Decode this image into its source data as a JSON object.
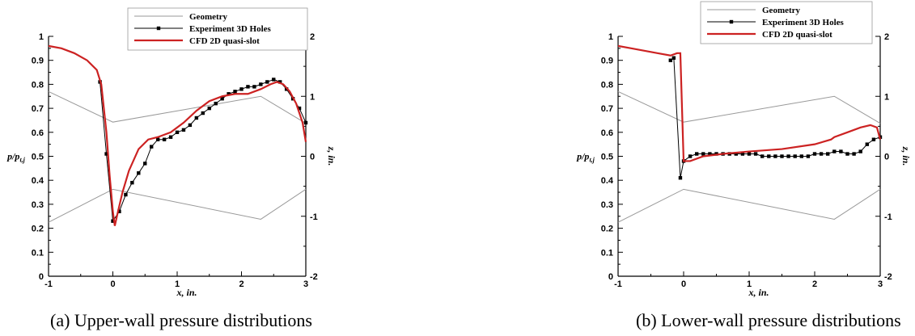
{
  "colors": {
    "geometry": "#999999",
    "experiment": "#000000",
    "cfd": "#cc2222"
  },
  "captions": [
    "(a) Upper-wall pressure distributions",
    "(b) Lower-wall pressure distributions"
  ],
  "chart_data": [
    {
      "type": "line",
      "xlabel": "x, in.",
      "ylabel": "p/p t,j",
      "y2label": "z, in.",
      "xlim": [
        -1,
        3
      ],
      "ylim": [
        0,
        1
      ],
      "y2lim": [
        -2,
        2
      ],
      "xticks": [
        "-1",
        "0",
        "1",
        "2",
        "3"
      ],
      "yticks": [
        "0",
        "0.1",
        "0.2",
        "0.3",
        "0.4",
        "0.5",
        "0.6",
        "0.7",
        "0.8",
        "0.9",
        "1"
      ],
      "y2ticks": [
        "-2",
        "-1",
        "0",
        "1",
        "2"
      ],
      "legend": [
        "Geometry",
        "Experiment 3D Holes",
        "CFD 2D quasi-slot"
      ],
      "legend_position": "top-center",
      "series": [
        {
          "name": "Geometry",
          "axis": "y2",
          "segments": [
            [
              [
                -1,
                1.08
              ],
              [
                0,
                0.57
              ],
              [
                2.3,
                1.0
              ],
              [
                3,
                0.55
              ]
            ],
            [
              [
                -1,
                -1.1
              ],
              [
                0,
                -0.55
              ],
              [
                2.3,
                -1.05
              ],
              [
                3,
                -0.55
              ]
            ]
          ]
        },
        {
          "name": "Experiment 3D Holes",
          "axis": "y",
          "x": [
            -0.2,
            -0.1,
            0,
            0.1,
            0.2,
            0.3,
            0.4,
            0.5,
            0.6,
            0.7,
            0.8,
            0.9,
            1.0,
            1.1,
            1.2,
            1.3,
            1.4,
            1.5,
            1.6,
            1.7,
            1.8,
            1.9,
            2.0,
            2.1,
            2.2,
            2.3,
            2.4,
            2.5,
            2.6,
            2.7,
            2.8,
            2.9,
            3.0
          ],
          "values": [
            0.81,
            0.51,
            0.23,
            0.27,
            0.34,
            0.39,
            0.43,
            0.47,
            0.54,
            0.57,
            0.57,
            0.58,
            0.6,
            0.61,
            0.63,
            0.66,
            0.68,
            0.7,
            0.72,
            0.74,
            0.76,
            0.77,
            0.78,
            0.79,
            0.79,
            0.8,
            0.81,
            0.82,
            0.81,
            0.78,
            0.74,
            0.7,
            0.64
          ]
        },
        {
          "name": "CFD 2D quasi-slot",
          "axis": "y",
          "x": [
            -1,
            -0.8,
            -0.6,
            -0.4,
            -0.25,
            -0.18,
            -0.1,
            -0.05,
            0.0,
            0.03,
            0.08,
            0.15,
            0.25,
            0.4,
            0.55,
            0.7,
            0.9,
            1.1,
            1.3,
            1.5,
            1.7,
            1.9,
            2.1,
            2.3,
            2.45,
            2.55,
            2.65,
            2.75,
            2.85,
            2.95,
            3.0
          ],
          "values": [
            0.96,
            0.95,
            0.93,
            0.9,
            0.86,
            0.8,
            0.6,
            0.42,
            0.27,
            0.21,
            0.27,
            0.35,
            0.44,
            0.53,
            0.57,
            0.58,
            0.6,
            0.64,
            0.69,
            0.73,
            0.75,
            0.76,
            0.76,
            0.78,
            0.8,
            0.81,
            0.8,
            0.77,
            0.72,
            0.64,
            0.56
          ]
        }
      ]
    },
    {
      "type": "line",
      "xlabel": "x, in.",
      "ylabel": "p/p t,j",
      "y2label": "z, in.",
      "xlim": [
        -1,
        3
      ],
      "ylim": [
        0,
        1
      ],
      "y2lim": [
        -2,
        2
      ],
      "xticks": [
        "-1",
        "0",
        "1",
        "2",
        "3"
      ],
      "yticks": [
        "0",
        "0.1",
        "0.2",
        "0.3",
        "0.4",
        "0.5",
        "0.6",
        "0.7",
        "0.8",
        "0.9",
        "1"
      ],
      "y2ticks": [
        "-2",
        "-1",
        "0",
        "1",
        "2"
      ],
      "legend": [
        "Geometry",
        "Experiment 3D Holes",
        "CFD 2D quasi-slot"
      ],
      "legend_position": "top-right",
      "series": [
        {
          "name": "Geometry",
          "axis": "y2",
          "segments": [
            [
              [
                -1,
                1.08
              ],
              [
                0,
                0.57
              ],
              [
                2.3,
                1.0
              ],
              [
                3,
                0.55
              ]
            ],
            [
              [
                -1,
                -1.1
              ],
              [
                0,
                -0.55
              ],
              [
                2.3,
                -1.05
              ],
              [
                3,
                -0.55
              ]
            ]
          ]
        },
        {
          "name": "Experiment 3D Holes",
          "axis": "y",
          "x": [
            -0.2,
            -0.15,
            -0.05,
            0.0,
            0.1,
            0.2,
            0.3,
            0.4,
            0.5,
            0.6,
            0.7,
            0.8,
            0.9,
            1.0,
            1.1,
            1.2,
            1.3,
            1.4,
            1.5,
            1.6,
            1.7,
            1.8,
            1.9,
            2.0,
            2.1,
            2.2,
            2.3,
            2.4,
            2.5,
            2.6,
            2.7,
            2.8,
            2.9,
            3.0
          ],
          "values": [
            0.9,
            0.91,
            0.41,
            0.48,
            0.5,
            0.51,
            0.51,
            0.51,
            0.51,
            0.51,
            0.51,
            0.51,
            0.51,
            0.51,
            0.51,
            0.5,
            0.5,
            0.5,
            0.5,
            0.5,
            0.5,
            0.5,
            0.5,
            0.51,
            0.51,
            0.51,
            0.52,
            0.52,
            0.51,
            0.51,
            0.52,
            0.55,
            0.57,
            0.58
          ]
        },
        {
          "name": "CFD 2D quasi-slot",
          "axis": "y",
          "x": [
            -1,
            -0.8,
            -0.6,
            -0.4,
            -0.2,
            -0.1,
            -0.05,
            0.0,
            0.1,
            0.3,
            0.6,
            1.0,
            1.5,
            2.0,
            2.25,
            2.3,
            2.5,
            2.7,
            2.85,
            2.95,
            3.0
          ],
          "values": [
            0.96,
            0.95,
            0.94,
            0.93,
            0.92,
            0.93,
            0.93,
            0.48,
            0.48,
            0.5,
            0.51,
            0.52,
            0.53,
            0.55,
            0.57,
            0.58,
            0.6,
            0.62,
            0.63,
            0.62,
            0.57
          ]
        }
      ]
    }
  ]
}
